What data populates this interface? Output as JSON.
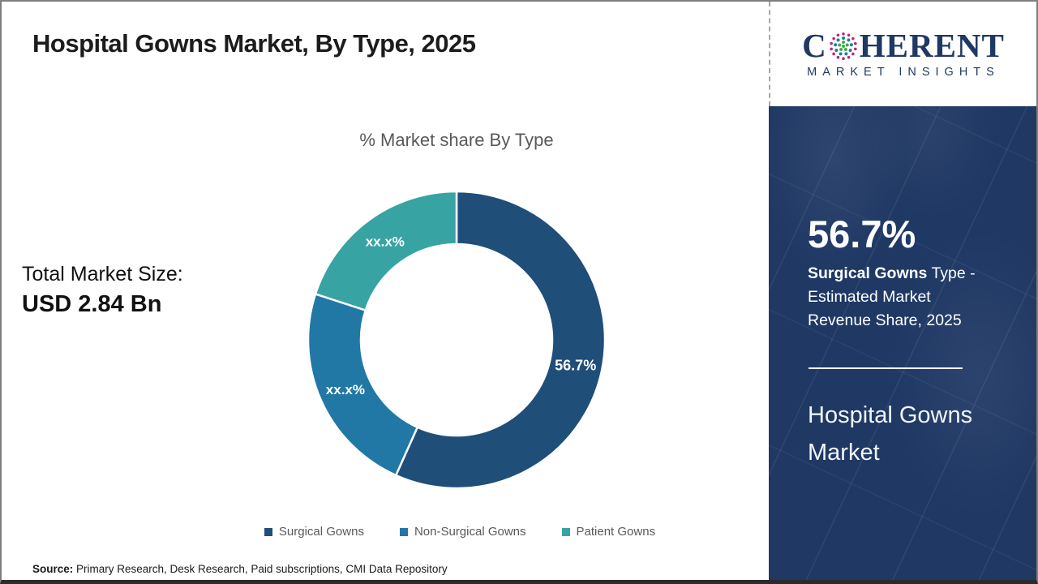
{
  "header": {
    "title": "Hospital Gowns Market, By Type, 2025"
  },
  "logo": {
    "c": "C",
    "rest": "HERENT",
    "tagline": "MARKET INSIGHTS",
    "navy": "#1f3864",
    "globe_colors": {
      "outer_ring": "#c2267c",
      "middle_ring": "#1b7f98",
      "inner": "#44a948"
    }
  },
  "chart_data": {
    "type": "pie",
    "subtype": "donut",
    "title": "% Market share By Type",
    "start_angle_deg": 0,
    "direction": "clockwise",
    "legend_position": "bottom",
    "segments": [
      {
        "label": "Surgical Gowns",
        "value_pct": 56.7,
        "display_label": "56.7%",
        "color": "#1f4e79"
      },
      {
        "label": "Non-Surgical Gowns",
        "value_pct": 23.3,
        "display_label": "xx.x%",
        "color": "#2178a5"
      },
      {
        "label": "Patient Gowns",
        "value_pct": 20.0,
        "display_label": "xx.x%",
        "color": "#38a3a3"
      }
    ]
  },
  "left_panel": {
    "total_label": "Total Market Size:",
    "total_value": "USD 2.84 Bn"
  },
  "sidebar": {
    "bg_color": "#1f3864",
    "stat_value": "56.7%",
    "stat_bold": "Surgical Gowns",
    "stat_rest": " Type - Estimated Market Revenue Share, 2025",
    "product": "Hospital Gowns Market"
  },
  "source": {
    "label": "Source:",
    "text": " Primary Research, Desk Research, Paid subscriptions, CMI Data Repository"
  }
}
